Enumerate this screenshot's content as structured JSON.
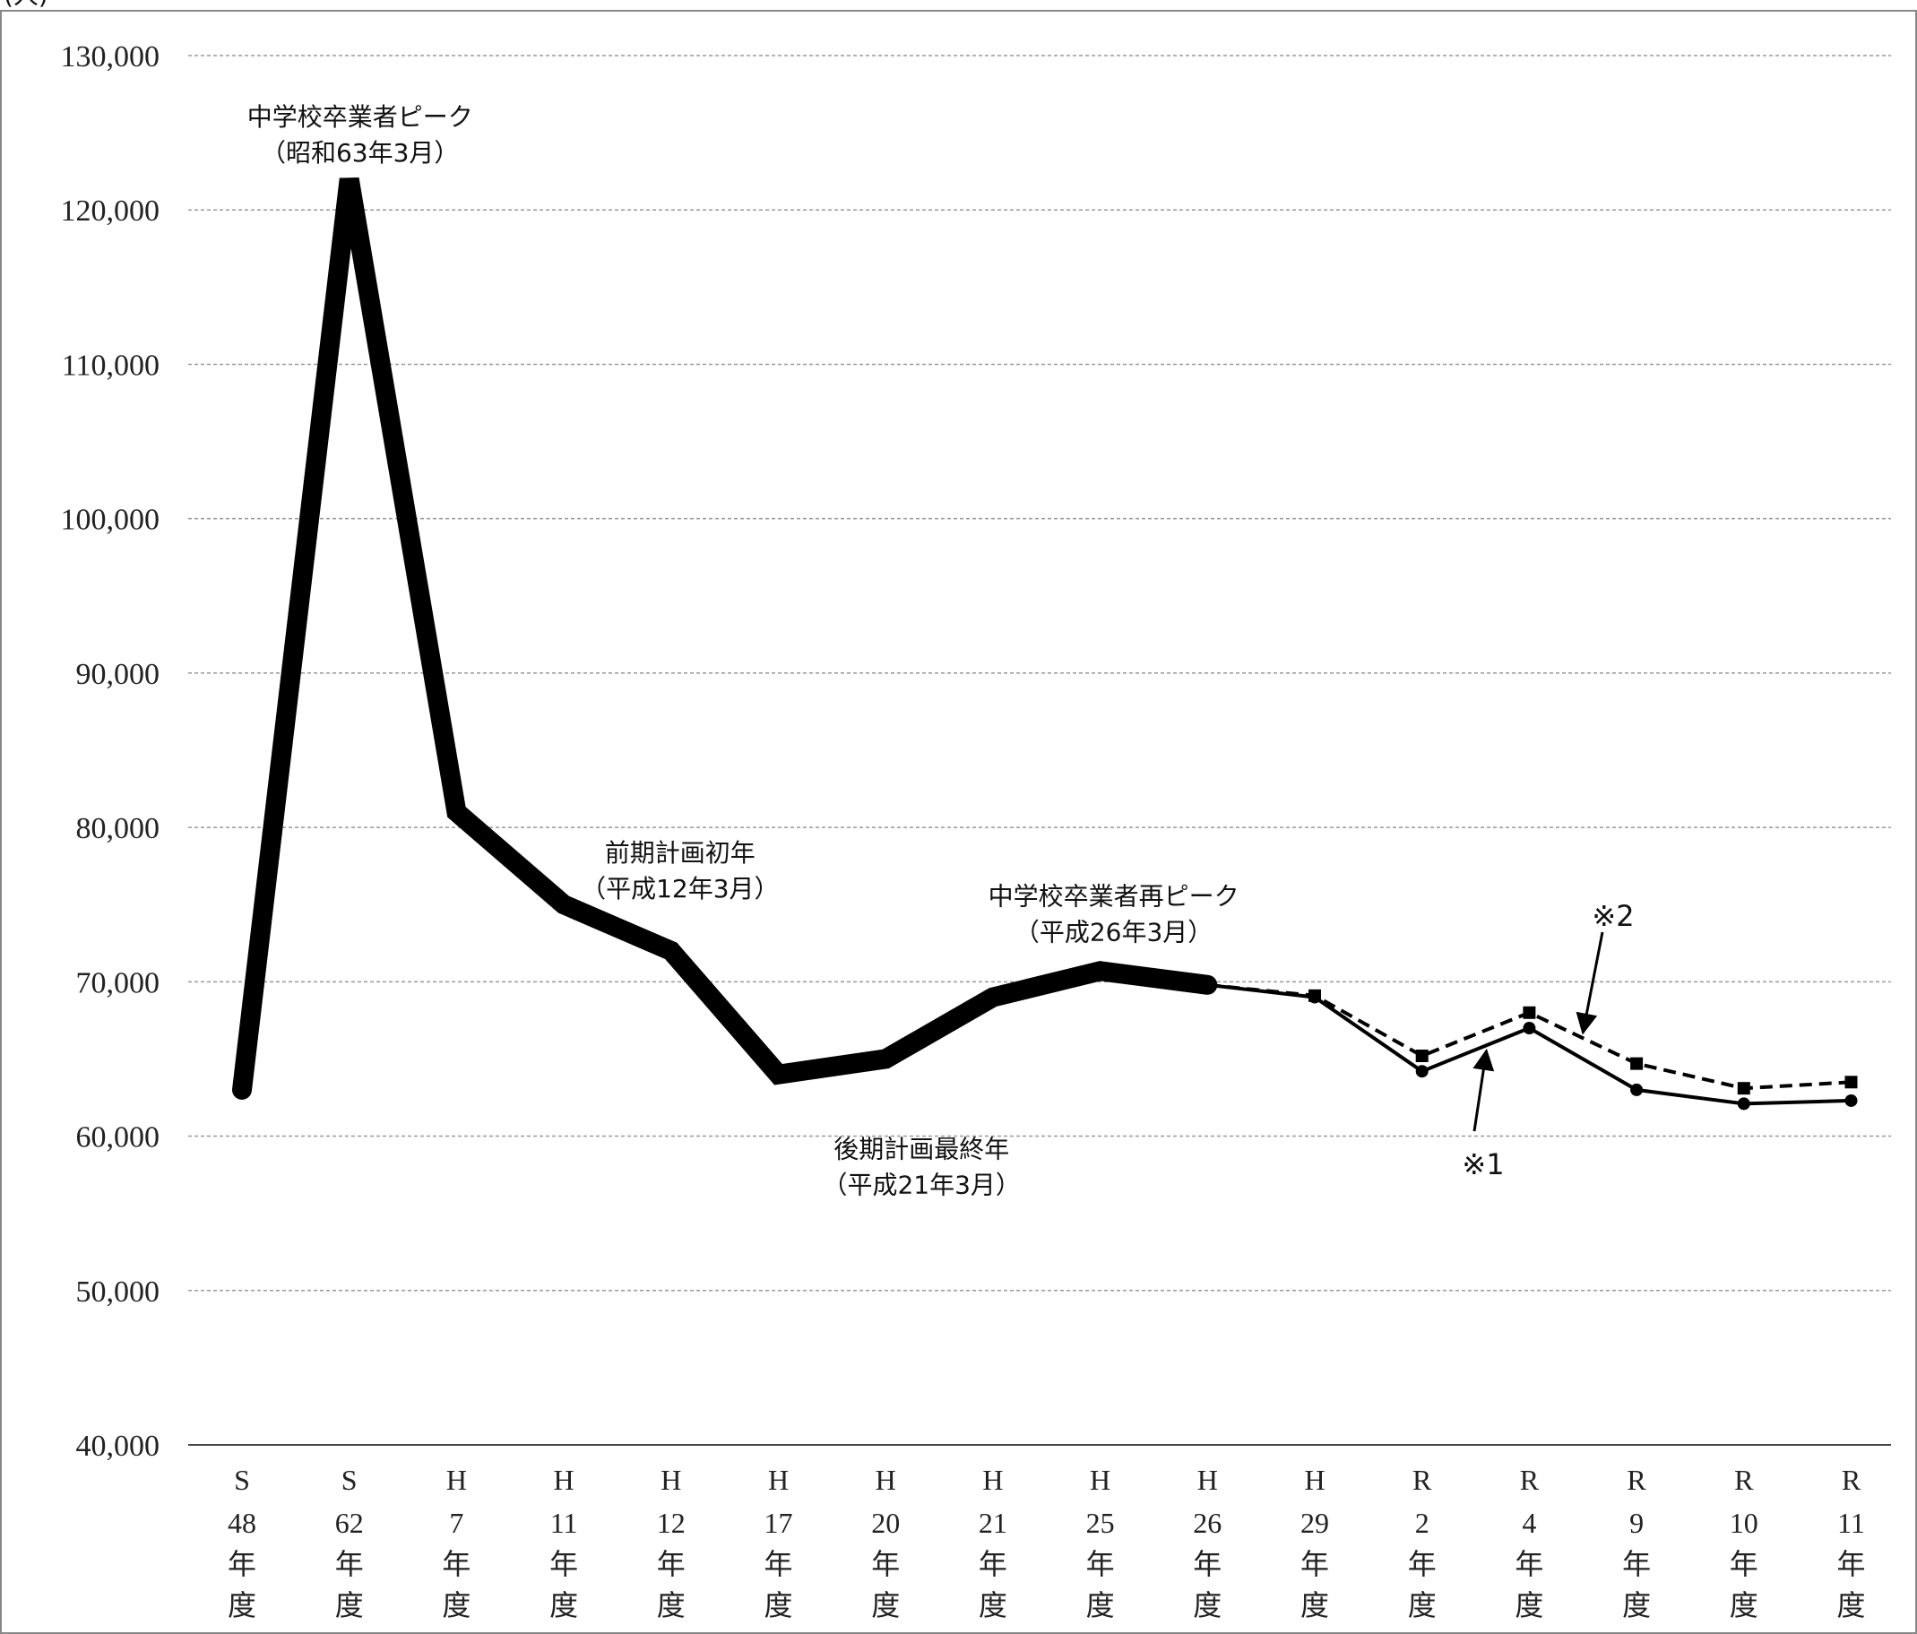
{
  "chart_data": {
    "type": "line",
    "unit_label": "(人)",
    "categories": [
      [
        "S",
        "48",
        "年",
        "度"
      ],
      [
        "S",
        "62",
        "年",
        "度"
      ],
      [
        "H",
        "7",
        "年",
        "度"
      ],
      [
        "H",
        "11",
        "年",
        "度"
      ],
      [
        "H",
        "12",
        "年",
        "度"
      ],
      [
        "H",
        "17",
        "年",
        "度"
      ],
      [
        "H",
        "20",
        "年",
        "度"
      ],
      [
        "H",
        "21",
        "年",
        "度"
      ],
      [
        "H",
        "25",
        "年",
        "度"
      ],
      [
        "H",
        "26",
        "年",
        "度"
      ],
      [
        "H",
        "29",
        "年",
        "度"
      ],
      [
        "R",
        "2",
        "年",
        "度"
      ],
      [
        "R",
        "4",
        "年",
        "度"
      ],
      [
        "R",
        "9",
        "年",
        "度"
      ],
      [
        "R",
        "10",
        "年",
        "度"
      ],
      [
        "R",
        "11",
        "年",
        "度"
      ]
    ],
    "ylim": [
      40000,
      130000
    ],
    "yticks": [
      40000,
      50000,
      60000,
      70000,
      80000,
      90000,
      100000,
      110000,
      120000,
      130000
    ],
    "ytick_labels": [
      "40,000",
      "50,000",
      "60,000",
      "70,000",
      "80,000",
      "90,000",
      "100,000",
      "110,000",
      "120,000",
      "130,000"
    ],
    "grid": true,
    "series": [
      {
        "name": "",
        "style": "thick-solid",
        "color": "#000000",
        "values": [
          63000,
          122000,
          81000,
          75000,
          72000,
          64000,
          65000,
          69000,
          70700,
          69800,
          null,
          null,
          null,
          null,
          null,
          null
        ]
      },
      {
        "name": "",
        "style": "solid-circle",
        "color": "#000000",
        "values": [
          null,
          null,
          null,
          null,
          null,
          null,
          null,
          null,
          null,
          69800,
          69000,
          64200,
          67000,
          63000,
          62100,
          62300
        ]
      },
      {
        "name": "",
        "style": "dashed-square",
        "color": "#000000",
        "values": [
          null,
          null,
          null,
          null,
          null,
          null,
          null,
          null,
          null,
          69800,
          69100,
          65200,
          68000,
          64700,
          63100,
          63500
        ]
      }
    ],
    "annotations": [
      {
        "index": 1,
        "value": 122000,
        "line1": "中学校卒業者ピーク",
        "line2": "（昭和63年3月）"
      },
      {
        "index": 4,
        "value": 72000,
        "line1": "前期計画初年",
        "line2": "（平成12年3月）"
      },
      {
        "index": 6,
        "value": 65000,
        "line1": "後期計画最終年",
        "line2": "（平成21年3月）"
      },
      {
        "index": 8,
        "value": 70700,
        "line1": "中学校卒業者再ピーク",
        "line2": "（平成26年3月）"
      }
    ],
    "marks": [
      {
        "label": "※1",
        "series_index": 1,
        "arrow_to_index": 11.6
      },
      {
        "label": "※2",
        "series_index": 2,
        "arrow_to_index": 12.5
      }
    ]
  }
}
